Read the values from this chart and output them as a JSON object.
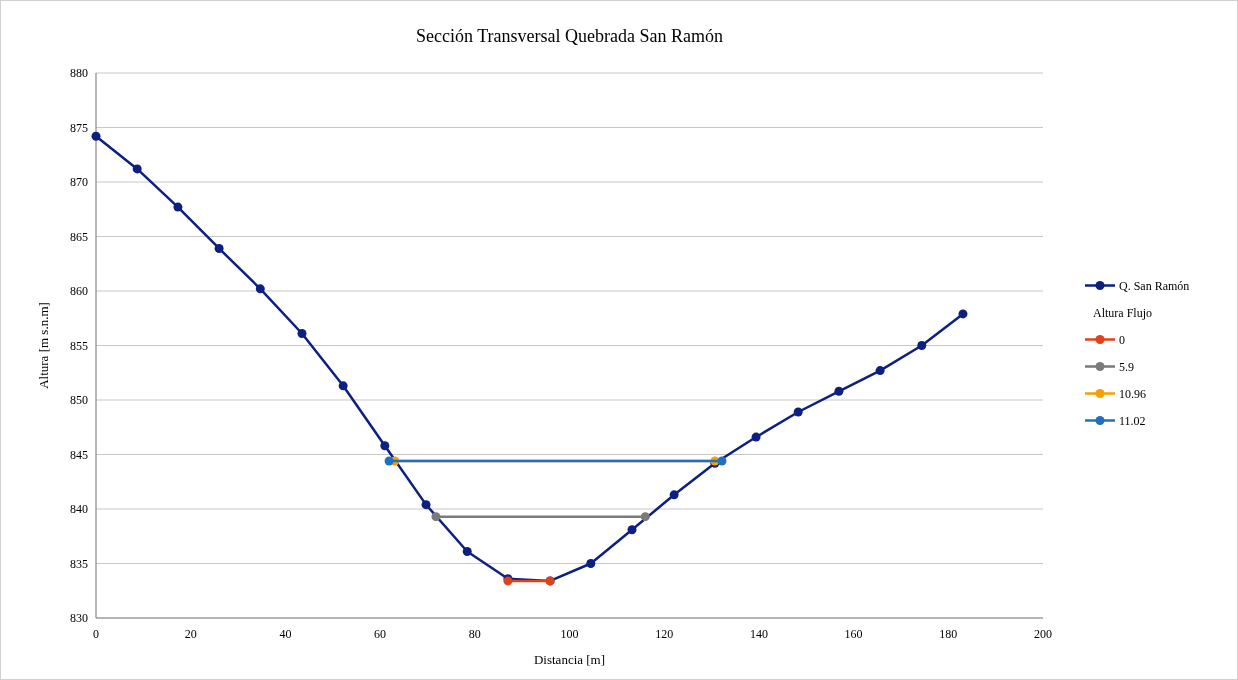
{
  "chart_data": {
    "type": "line",
    "title": "Sección Transversal Quebrada San Ramón",
    "xlabel": "Distancia [m]",
    "ylabel": "Altura [m s.n.m]",
    "legend_title": "Altura Flujo",
    "xlim": [
      0,
      200
    ],
    "xticks": [
      0,
      20,
      40,
      60,
      80,
      100,
      120,
      140,
      160,
      180,
      200
    ],
    "ylim": [
      830,
      880
    ],
    "yticks": [
      830,
      835,
      840,
      845,
      850,
      855,
      860,
      865,
      870,
      875,
      880
    ],
    "grid": "y",
    "legend": "right",
    "marker": "circle",
    "line_style": "solid",
    "series": [
      {
        "name": "Q. San Ramón",
        "color": "#0d1f80",
        "x": [
          0,
          8.7,
          17.3,
          26.0,
          34.7,
          43.5,
          52.2,
          61.0,
          69.7,
          78.4,
          87.0,
          95.9,
          104.5,
          113.2,
          122.1,
          130.7,
          139.4,
          148.3,
          156.9,
          165.6,
          174.4,
          183.1
        ],
        "values": [
          874.2,
          871.2,
          867.7,
          863.9,
          860.2,
          856.1,
          851.3,
          845.8,
          840.4,
          836.1,
          833.6,
          833.4,
          835.0,
          838.1,
          841.3,
          844.2,
          846.6,
          848.9,
          850.8,
          852.7,
          855.0,
          857.9
        ]
      },
      {
        "name": "0",
        "color": "#e0401a",
        "x": [
          87.0,
          95.9
        ],
        "values": [
          833.4,
          833.4
        ]
      },
      {
        "name": "5.9",
        "color": "#7a7a7a",
        "x": [
          71.8,
          116.0
        ],
        "values": [
          839.3,
          839.3
        ]
      },
      {
        "name": "10.96",
        "color": "#f5a000",
        "x": [
          63.1,
          130.7
        ],
        "values": [
          844.4,
          844.4
        ]
      },
      {
        "name": "11.02",
        "color": "#2070c0",
        "x": [
          61.9,
          132.2
        ],
        "values": [
          844.4,
          844.4
        ]
      }
    ]
  }
}
